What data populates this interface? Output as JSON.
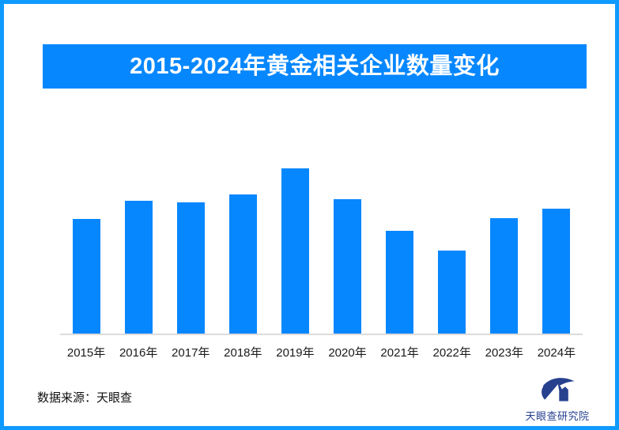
{
  "page": {
    "background": "#ffffff",
    "border_color": "#0f9aff"
  },
  "header": {
    "title": "2015-2024年黄金相关企业数量变化",
    "background": "#0787fe",
    "text_color": "#ffffff"
  },
  "chart_data": {
    "type": "bar",
    "title": "2015-2024年黄金相关企业数量变化",
    "categories": [
      "2015年",
      "2016年",
      "2017年",
      "2018年",
      "2019年",
      "2020年",
      "2021年",
      "2022年",
      "2023年",
      "2024年"
    ],
    "values": [
      145,
      168,
      166,
      176,
      209,
      170,
      130,
      105,
      146,
      158
    ],
    "values_note": "relative bar heights; chart displays no numeric value labels or y-axis",
    "xlabel": "",
    "ylabel": "",
    "ylim": [
      0,
      230
    ],
    "grid": false,
    "legend": false,
    "value_labels_shown": false,
    "y_axis_shown": false,
    "bar_color": "#0787fe",
    "axis_line_color": "#dcdcdc"
  },
  "footer": {
    "source_label": "数据来源：天眼查"
  },
  "branding": {
    "org_name": "天眼查研究院",
    "logo": "tianyancha-research-logo",
    "color": "#27418f"
  }
}
